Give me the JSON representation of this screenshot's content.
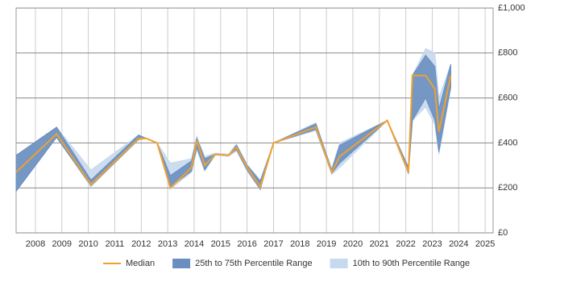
{
  "chart_data": {
    "type": "line-band",
    "x": [
      2007.27,
      2008.8,
      2010.1,
      2011.9,
      2012.2,
      2012.6,
      2013.1,
      2013.9,
      2014.1,
      2014.4,
      2014.8,
      2015.3,
      2015.6,
      2016,
      2016.5,
      2017,
      2018.6,
      2019.2,
      2019.5,
      2021.3,
      2022.1,
      2022.25,
      2022.75,
      2023.1,
      2023.25,
      2023.7
    ],
    "bands": [
      {
        "name": "10th to 90th Percentile Range",
        "color": "#c6d9ee",
        "low": [
          185,
          425,
          205,
          415,
          420,
          400,
          195,
          270,
          370,
          275,
          345,
          340,
          365,
          275,
          190,
          400,
          455,
          260,
          290,
          500,
          260,
          500,
          560,
          480,
          350,
          640
        ],
        "high": [
          345,
          470,
          280,
          435,
          420,
          400,
          310,
          330,
          430,
          340,
          355,
          350,
          395,
          305,
          235,
          400,
          490,
          285,
          400,
          500,
          295,
          700,
          820,
          800,
          600,
          750
        ]
      },
      {
        "name": "25th to 75th Percentile Range",
        "color": "#6a8fbf",
        "low": [
          185,
          425,
          210,
          415,
          420,
          400,
          205,
          275,
          380,
          280,
          350,
          345,
          370,
          280,
          195,
          400,
          460,
          265,
          310,
          500,
          265,
          500,
          600,
          500,
          360,
          650
        ],
        "high": [
          345,
          470,
          235,
          435,
          420,
          400,
          255,
          320,
          420,
          330,
          350,
          345,
          390,
          300,
          230,
          400,
          485,
          280,
          390,
          500,
          290,
          700,
          790,
          740,
          550,
          750
        ]
      }
    ],
    "series": [
      {
        "name": "Median",
        "color": "#f0a030",
        "values": [
          270,
          440,
          215,
          420,
          420,
          400,
          200,
          290,
          410,
          300,
          350,
          345,
          380,
          290,
          205,
          400,
          470,
          270,
          340,
          500,
          270,
          700,
          700,
          640,
          450,
          700
        ]
      }
    ],
    "legend_order": [
      "series.0",
      "bands.1",
      "bands.0"
    ],
    "xlim": [
      2007.27,
      2025.3
    ],
    "ylim": [
      0,
      1000
    ],
    "xticks": [
      2008,
      2009,
      2010,
      2011,
      2012,
      2013,
      2014,
      2015,
      2016,
      2017,
      2018,
      2019,
      2020,
      2021,
      2022,
      2023,
      2024,
      2025
    ],
    "yticks": [
      {
        "value": 0,
        "label": "£0"
      },
      {
        "value": 200,
        "label": "£200"
      },
      {
        "value": 400,
        "label": "£400"
      },
      {
        "value": 600,
        "label": "£600"
      },
      {
        "value": 800,
        "label": "£800"
      },
      {
        "value": 1000,
        "label": "£1,000"
      }
    ],
    "grid": true,
    "legend": "bottom"
  }
}
